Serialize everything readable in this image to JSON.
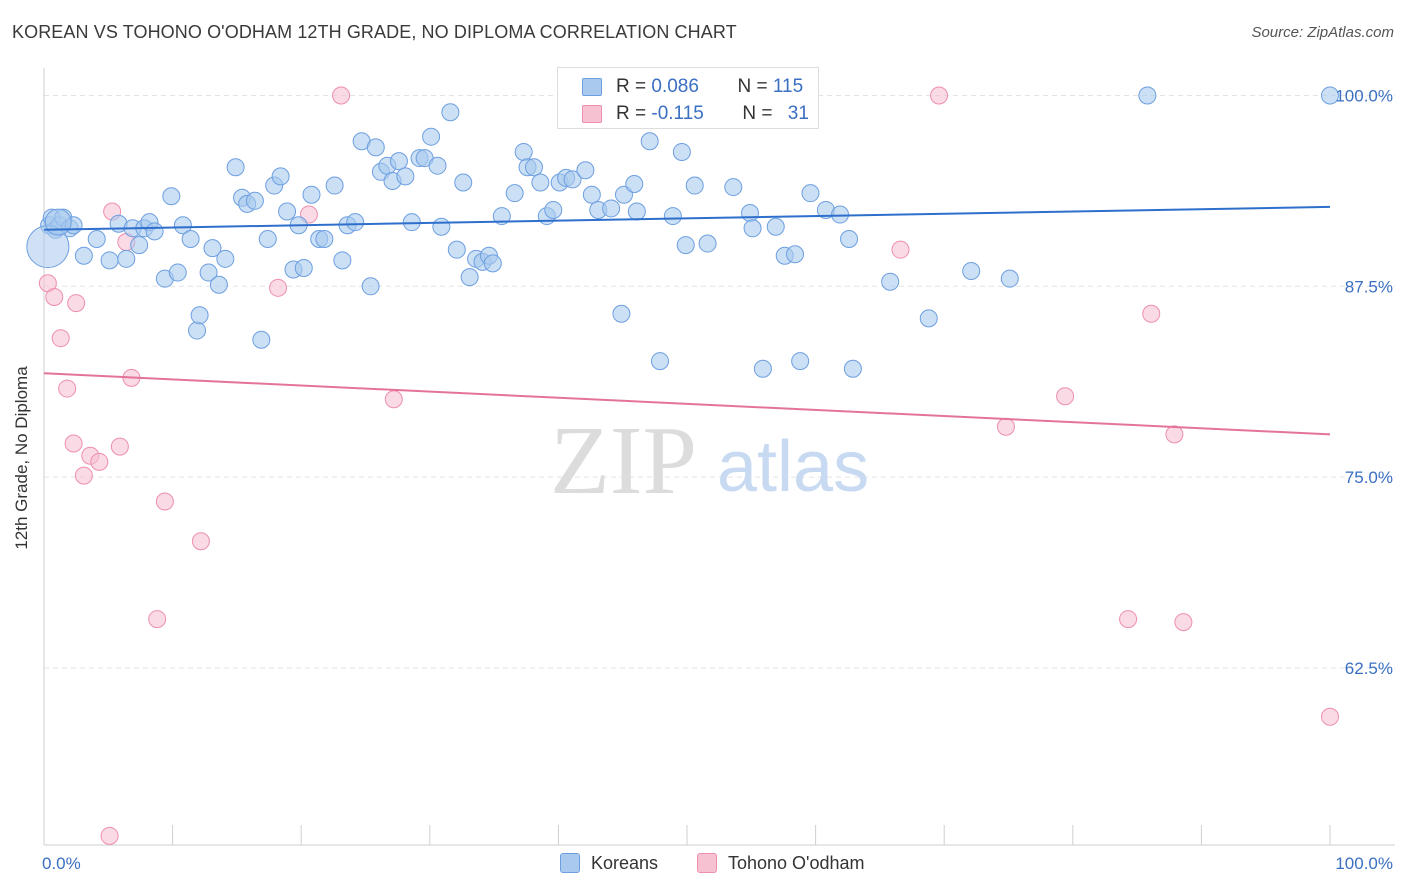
{
  "title": "KOREAN VS TOHONO O'ODHAM 12TH GRADE, NO DIPLOMA CORRELATION CHART",
  "source": "Source: ZipAtlas.com",
  "watermark": {
    "zip": "ZIP",
    "atlas": "atlas"
  },
  "legend_stats": [
    {
      "r_label": "R = ",
      "r_value": "0.086",
      "n_label": "N = ",
      "n_value": "115"
    },
    {
      "r_label": "R = ",
      "r_value": "-0.115",
      "n_label": "N = ",
      "n_value": "31"
    }
  ],
  "legend_series": [
    "Koreans",
    "Tohono O'odham"
  ],
  "colors": {
    "blue_fill": "#a9c9ee",
    "blue_stroke": "#6d9fe0",
    "blue_line": "#2e6fcc",
    "pink_fill": "#f6c2d2",
    "pink_stroke": "#ee8fae",
    "pink_line": "#e4739b",
    "grid": "#e3e3e3",
    "axis_text": "#3a6fc2"
  },
  "chart_data": {
    "type": "scatter",
    "title": "KOREAN VS TOHONO O'ODHAM 12TH GRADE, NO DIPLOMA CORRELATION CHART",
    "xlabel": "",
    "ylabel": "12th Grade, No Diploma",
    "xlim": [
      0,
      100
    ],
    "ylim": [
      50.9,
      101.8
    ],
    "x_tick_labels": [
      "0.0%",
      "100.0%"
    ],
    "y_ticks": [
      62.5,
      75.0,
      87.5,
      100.0
    ],
    "y_tick_labels": [
      "62.5%",
      "75.0%",
      "87.5%",
      "100.0%"
    ],
    "grid": true,
    "series": [
      {
        "name": "Koreans",
        "trend": {
          "x": [
            0,
            100
          ],
          "y": [
            91.2,
            92.7
          ]
        },
        "points": [
          [
            0.4,
            91.5
          ],
          [
            0.6,
            92.0
          ],
          [
            0.9,
            91.2
          ],
          [
            1.2,
            91.5
          ],
          [
            1.5,
            92.0
          ],
          [
            2.0,
            91.3
          ],
          [
            2.3,
            91.5
          ],
          [
            3.1,
            89.5
          ],
          [
            4.1,
            90.6
          ],
          [
            5.1,
            89.2
          ],
          [
            5.8,
            91.6
          ],
          [
            6.4,
            89.3
          ],
          [
            6.9,
            91.3
          ],
          [
            7.4,
            90.2
          ],
          [
            7.8,
            91.3
          ],
          [
            8.2,
            91.7
          ],
          [
            8.6,
            91.1
          ],
          [
            9.4,
            88.0
          ],
          [
            9.9,
            93.4
          ],
          [
            10.4,
            88.4
          ],
          [
            10.8,
            91.5
          ],
          [
            11.4,
            90.6
          ],
          [
            11.9,
            84.6
          ],
          [
            12.1,
            85.6
          ],
          [
            12.8,
            88.4
          ],
          [
            13.1,
            90.0
          ],
          [
            13.6,
            87.6
          ],
          [
            14.1,
            89.3
          ],
          [
            14.9,
            95.3
          ],
          [
            15.4,
            93.3
          ],
          [
            15.8,
            92.9
          ],
          [
            16.4,
            93.1
          ],
          [
            16.9,
            84.0
          ],
          [
            17.4,
            90.6
          ],
          [
            17.9,
            94.1
          ],
          [
            18.4,
            94.7
          ],
          [
            18.9,
            92.4
          ],
          [
            19.4,
            88.6
          ],
          [
            19.8,
            91.5
          ],
          [
            20.2,
            88.7
          ],
          [
            20.8,
            93.5
          ],
          [
            21.4,
            90.6
          ],
          [
            21.8,
            90.6
          ],
          [
            22.6,
            94.1
          ],
          [
            23.2,
            89.2
          ],
          [
            23.6,
            91.5
          ],
          [
            24.2,
            91.7
          ],
          [
            24.7,
            97.0
          ],
          [
            25.4,
            87.5
          ],
          [
            25.8,
            96.6
          ],
          [
            26.2,
            95.0
          ],
          [
            26.7,
            95.4
          ],
          [
            27.1,
            94.4
          ],
          [
            27.6,
            95.7
          ],
          [
            28.1,
            94.7
          ],
          [
            28.6,
            91.7
          ],
          [
            29.2,
            95.9
          ],
          [
            29.6,
            95.9
          ],
          [
            30.1,
            97.3
          ],
          [
            30.6,
            95.4
          ],
          [
            30.9,
            91.4
          ],
          [
            31.6,
            98.9
          ],
          [
            32.1,
            89.9
          ],
          [
            32.6,
            94.3
          ],
          [
            33.1,
            88.1
          ],
          [
            33.6,
            89.3
          ],
          [
            34.1,
            89.1
          ],
          [
            34.6,
            89.5
          ],
          [
            34.9,
            89.0
          ],
          [
            35.6,
            92.1
          ],
          [
            36.6,
            93.6
          ],
          [
            37.3,
            96.3
          ],
          [
            37.6,
            95.3
          ],
          [
            38.1,
            95.3
          ],
          [
            38.6,
            94.3
          ],
          [
            39.1,
            92.1
          ],
          [
            39.6,
            92.5
          ],
          [
            40.1,
            94.3
          ],
          [
            40.6,
            94.6
          ],
          [
            41.1,
            94.5
          ],
          [
            41.6,
            100.0
          ],
          [
            42.1,
            95.1
          ],
          [
            42.6,
            93.5
          ],
          [
            43.1,
            92.5
          ],
          [
            44.1,
            92.6
          ],
          [
            44.9,
            85.7
          ],
          [
            45.1,
            93.5
          ],
          [
            45.9,
            94.2
          ],
          [
            46.1,
            92.4
          ],
          [
            47.1,
            97.0
          ],
          [
            47.9,
            82.6
          ],
          [
            48.9,
            92.1
          ],
          [
            49.6,
            96.3
          ],
          [
            49.9,
            90.2
          ],
          [
            50.6,
            94.1
          ],
          [
            51.6,
            90.3
          ],
          [
            53.6,
            94.0
          ],
          [
            54.9,
            92.3
          ],
          [
            55.1,
            91.3
          ],
          [
            55.9,
            82.1
          ],
          [
            56.9,
            91.4
          ],
          [
            57.6,
            89.5
          ],
          [
            58.4,
            89.6
          ],
          [
            58.8,
            82.6
          ],
          [
            59.6,
            93.6
          ],
          [
            60.8,
            92.5
          ],
          [
            61.9,
            92.2
          ],
          [
            62.6,
            90.6
          ],
          [
            62.9,
            82.1
          ],
          [
            65.8,
            87.8
          ],
          [
            68.8,
            85.4
          ],
          [
            72.1,
            88.5
          ],
          [
            75.1,
            88.0
          ],
          [
            85.8,
            100.0
          ],
          [
            100.0,
            100.0
          ]
        ]
      },
      {
        "name": "Tohono O'odham",
        "trend": {
          "x": [
            0,
            100
          ],
          "y": [
            81.8,
            77.8
          ]
        },
        "points": [
          [
            0.3,
            87.7
          ],
          [
            0.8,
            86.8
          ],
          [
            1.3,
            84.1
          ],
          [
            1.8,
            80.8
          ],
          [
            2.3,
            77.2
          ],
          [
            3.1,
            75.1
          ],
          [
            3.6,
            76.4
          ],
          [
            4.3,
            76.0
          ],
          [
            5.1,
            51.5
          ],
          [
            5.3,
            92.4
          ],
          [
            5.9,
            77.0
          ],
          [
            6.4,
            90.4
          ],
          [
            6.8,
            81.5
          ],
          [
            8.8,
            65.7
          ],
          [
            9.4,
            73.4
          ],
          [
            12.2,
            70.8
          ],
          [
            18.2,
            87.4
          ],
          [
            20.6,
            92.2
          ],
          [
            23.1,
            100.0
          ],
          [
            27.2,
            80.1
          ],
          [
            46.8,
            100.0
          ],
          [
            66.6,
            89.9
          ],
          [
            69.6,
            100.0
          ],
          [
            74.8,
            78.3
          ],
          [
            79.4,
            80.3
          ],
          [
            84.3,
            65.7
          ],
          [
            86.1,
            85.7
          ],
          [
            87.9,
            77.8
          ],
          [
            88.6,
            65.5
          ],
          [
            100.0,
            59.3
          ],
          [
            2.5,
            86.4
          ]
        ]
      }
    ]
  }
}
